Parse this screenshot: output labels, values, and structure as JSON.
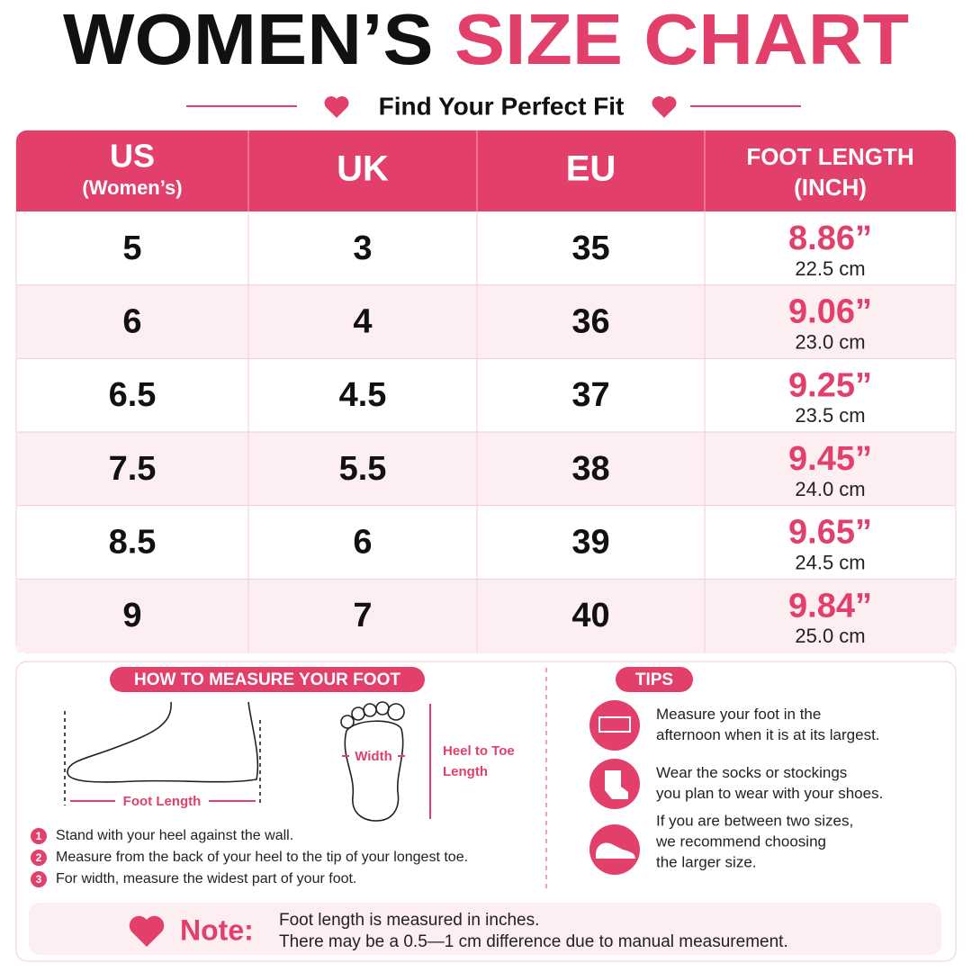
{
  "header": {
    "title_black": "WOMEN’S",
    "title_pink": "SIZE CHART",
    "subtitle": "Find Your Perfect Fit"
  },
  "table": {
    "headers": [
      {
        "label": "US",
        "sub": "(Women’s)"
      },
      {
        "label": "UK"
      },
      {
        "label": "EU"
      },
      {
        "label": "FOOT LENGTH",
        "sub": "(INCH)"
      }
    ],
    "rows": [
      [
        "5",
        "3",
        "35",
        "8.86”",
        "22.5 cm"
      ],
      [
        "6",
        "4",
        "36",
        "9.06”",
        "23.0 cm"
      ],
      [
        "6.5",
        "4.5",
        "37",
        "9.25”",
        "23.5 cm"
      ],
      [
        "7.5",
        "5.5",
        "38",
        "9.45”",
        "24.0 cm"
      ],
      [
        "8.5",
        "6",
        "39",
        "9.65”",
        "24.5 cm"
      ],
      [
        "9",
        "7",
        "40",
        "9.84”",
        "25.0 cm"
      ]
    ]
  },
  "measure": {
    "title": "HOW TO MEASURE YOUR FOOT",
    "foot_length": "Foot Length",
    "width": "Width",
    "heel_to_toe": [
      "Heel to Toe",
      "Length"
    ],
    "steps": [
      {
        "num": "1",
        "text": "Stand with your heel against the wall."
      },
      {
        "num": "2",
        "text": "Measure from the back of your heel to the tip of your longest toe."
      },
      {
        "num": "3",
        "text": "For width, measure the widest part of your foot."
      }
    ]
  },
  "tips": {
    "title": "TIPS",
    "items": [
      [
        "Measure your foot in the",
        "afternoon when it is at its largest."
      ],
      [
        "Wear the socks or stockings",
        "you plan to wear with your shoes."
      ],
      [
        "If you are between two sizes,",
        "we recommend choosing",
        "the larger size."
      ]
    ]
  },
  "note": {
    "label": "Note:",
    "lines": [
      "Foot length is measured in inches.",
      "There may be a 0.5—1 cm difference due to manual measurement."
    ]
  }
}
